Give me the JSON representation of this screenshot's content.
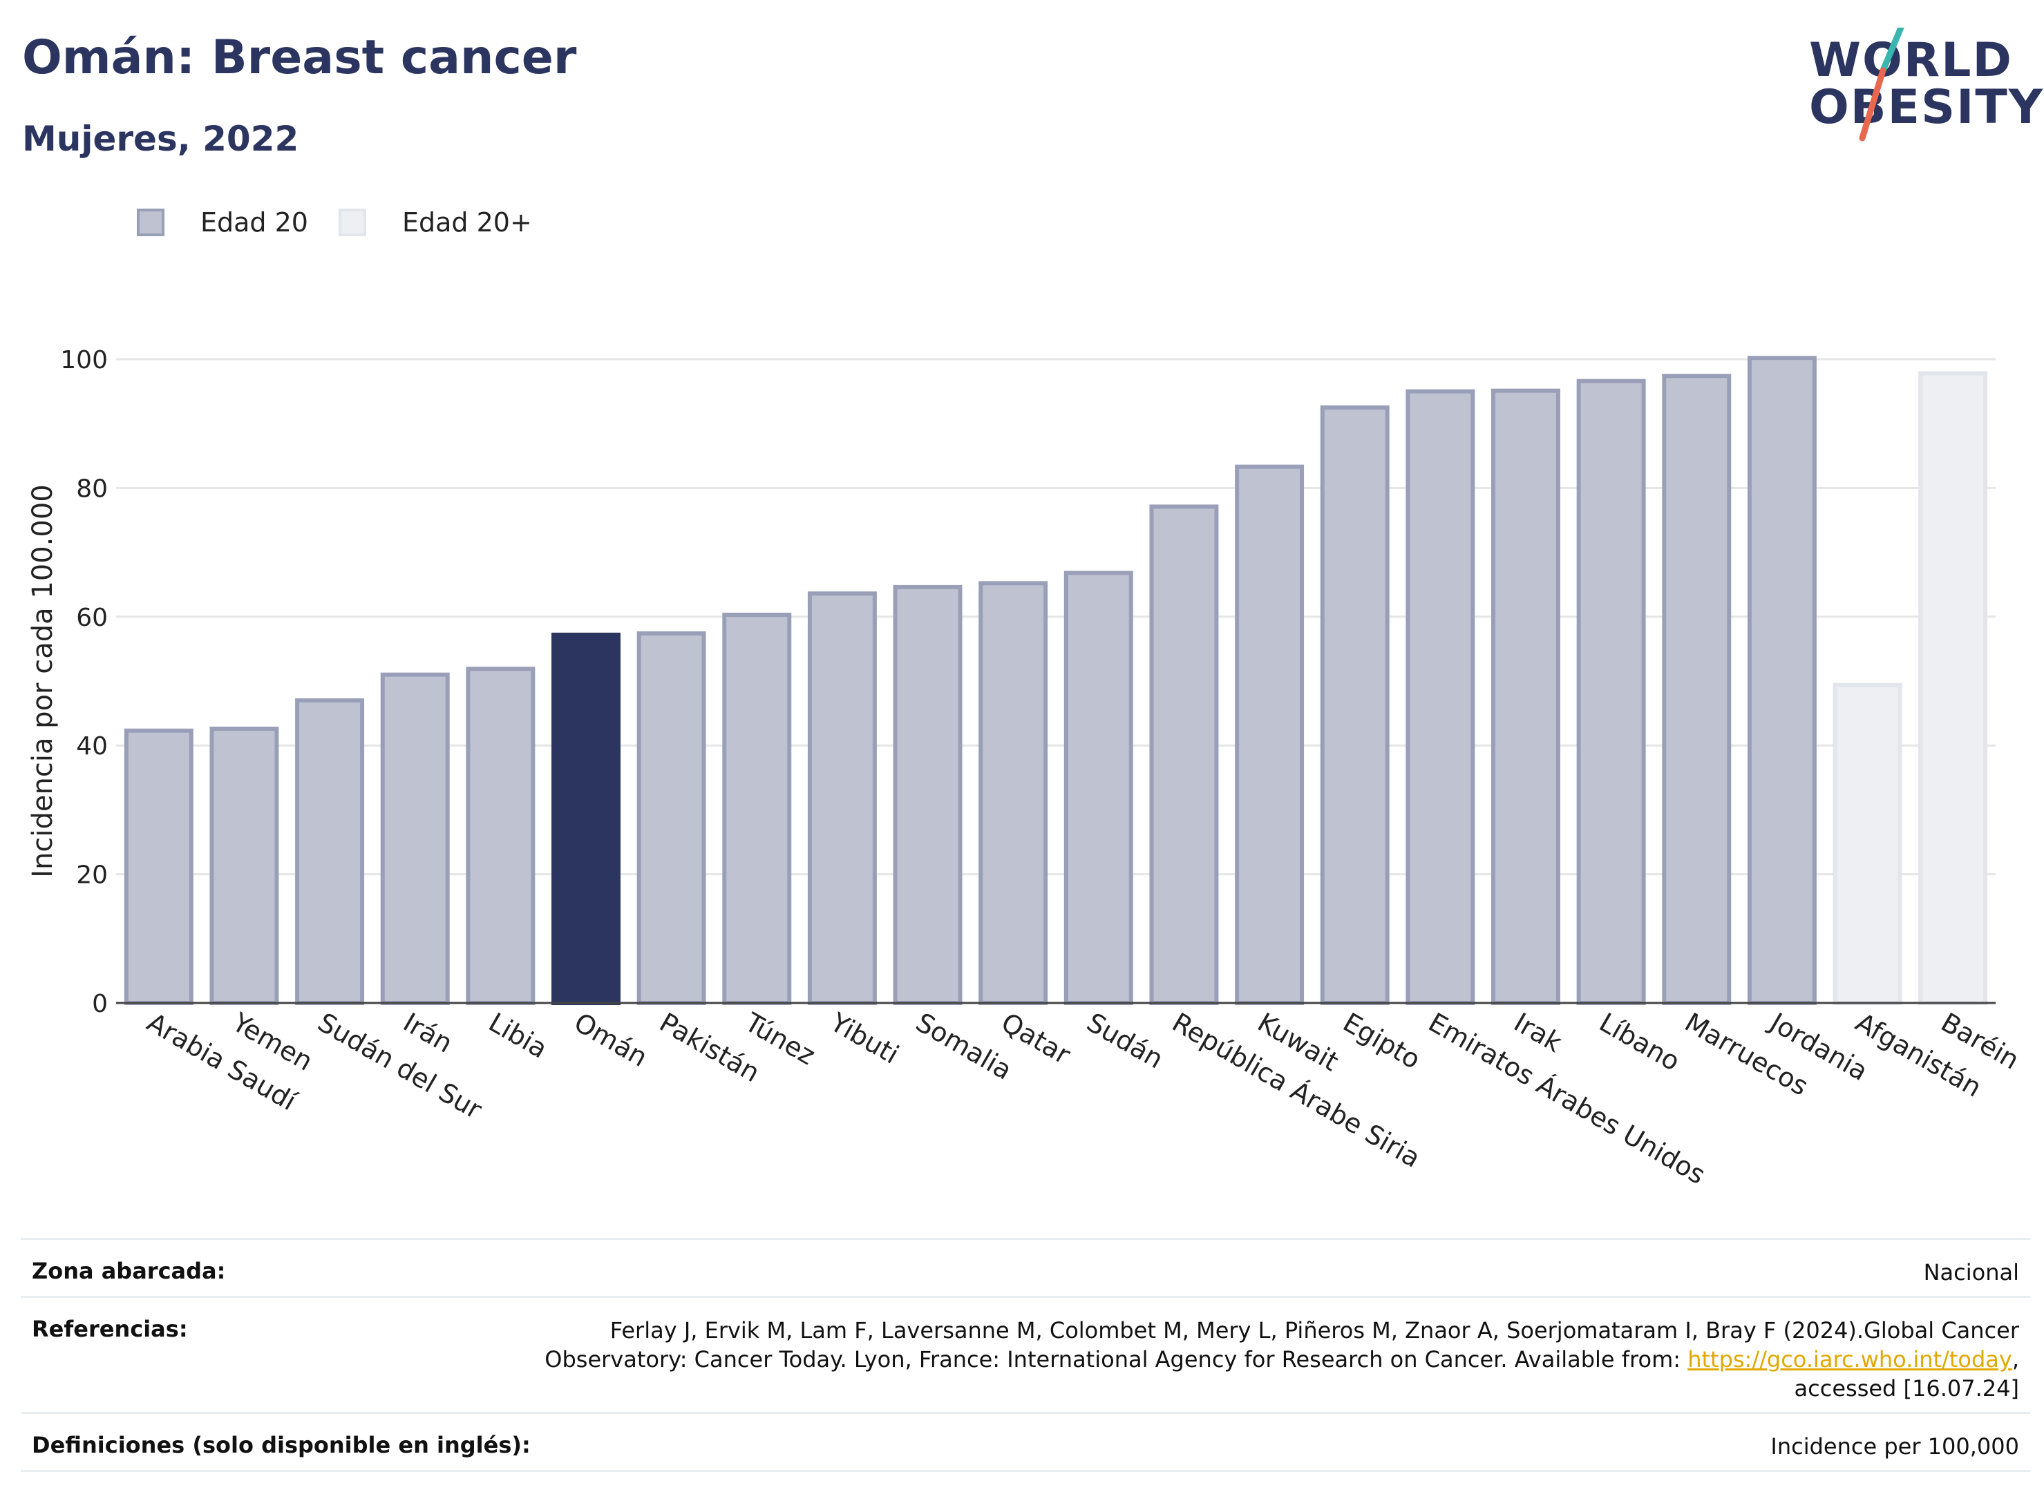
{
  "header": {
    "title": "Omán: Breast cancer",
    "subtitle": "Mujeres, 2022"
  },
  "logo": {
    "line1": "WORLD",
    "line2": "OBESITY",
    "colors": {
      "text": "#2b3560",
      "slash_top": "#3ab5b0",
      "slash_bottom": "#e8674f"
    }
  },
  "legend": [
    {
      "label": "Edad 20",
      "fill": "#bfc2d0",
      "stroke": "#9a9fb8"
    },
    {
      "label": "Edad 20+",
      "fill": "#eeeff3",
      "stroke": "#e3e5ec"
    }
  ],
  "chart_data": {
    "type": "bar",
    "title": "Omán: Breast cancer",
    "subtitle": "Mujeres, 2022",
    "xlabel": "",
    "ylabel": "Incidencia por cada 100.000",
    "ylim": [
      0,
      100
    ],
    "yticks": [
      0,
      20,
      40,
      60,
      80,
      100
    ],
    "grid": true,
    "legend_position": "top-left",
    "highlight": "Omán",
    "colors": {
      "Edad 20": {
        "fill": "#bfc2d0",
        "stroke": "#9a9fb8"
      },
      "Edad 20+": {
        "fill": "#eeeff3",
        "stroke": "#e3e5ec"
      },
      "highlight": "#2b3560"
    },
    "categories": [
      "Arabia Saudí",
      "Yemen",
      "Sudán del Sur",
      "Irán",
      "Libia",
      "Omán",
      "Pakistán",
      "Túnez",
      "Yibuti",
      "Somalia",
      "Qatar",
      "Sudán",
      "República Árabe Siria",
      "Kuwait",
      "Egipto",
      "Emiratos Árabes Unidos",
      "Irak",
      "Líbano",
      "Marruecos",
      "Jordania",
      "Afganistán",
      "Baréin"
    ],
    "values": [
      42.3,
      42.6,
      47.0,
      51.0,
      51.9,
      57.2,
      57.4,
      60.3,
      63.6,
      64.6,
      65.2,
      66.8,
      77.1,
      83.3,
      92.5,
      95.0,
      95.1,
      96.6,
      97.4,
      100.2,
      49.4,
      97.8
    ],
    "groups": [
      "Edad 20",
      "Edad 20",
      "Edad 20",
      "Edad 20",
      "Edad 20",
      "Edad 20",
      "Edad 20",
      "Edad 20",
      "Edad 20",
      "Edad 20",
      "Edad 20",
      "Edad 20",
      "Edad 20",
      "Edad 20",
      "Edad 20",
      "Edad 20",
      "Edad 20",
      "Edad 20",
      "Edad 20",
      "Edad 20",
      "Edad 20+",
      "Edad 20+"
    ]
  },
  "footer": {
    "coverage_label": "Zona abarcada:",
    "coverage_value": "Nacional",
    "references_label": "Referencias:",
    "references_line1": "Ferlay J, Ervik M, Lam F, Laversanne M, Colombet M, Mery L, Piñeros M, Znaor A, Soerjomataram I, Bray F (2024).Global Cancer",
    "references_line2_prefix": "Observatory: Cancer Today. Lyon, France: International Agency for Research on Cancer. Available from: ",
    "references_link": "https://gco.iarc.who.int/today",
    "references_line2_suffix": ",",
    "references_line3": "accessed [16.07.24]",
    "definitions_label": "Definiciones (solo disponible en inglés):",
    "definitions_value": "Incidence per 100,000"
  }
}
